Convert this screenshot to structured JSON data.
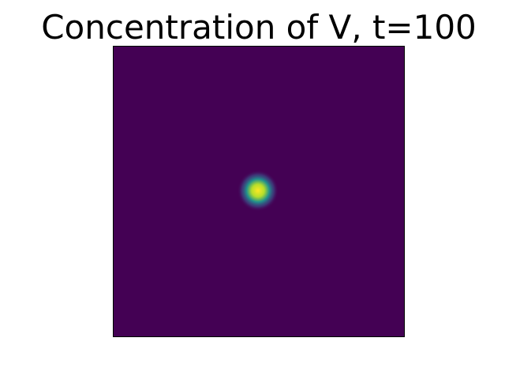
{
  "chart_data": {
    "type": "heatmap",
    "title": "Concentration of V, t=100",
    "xlabel": "",
    "ylabel": "",
    "axes_visible": false,
    "grid": false,
    "colormap": "viridis",
    "colors": {
      "background": "#440154",
      "peak": "#fde725",
      "mid": "#21918c",
      "frame": "#000000"
    },
    "field": {
      "description_units": "grid fraction",
      "spot_center": [
        0.497,
        0.497
      ],
      "spot_sigma": 0.034,
      "background_value": 0.0,
      "peak_value": 1.0
    }
  }
}
